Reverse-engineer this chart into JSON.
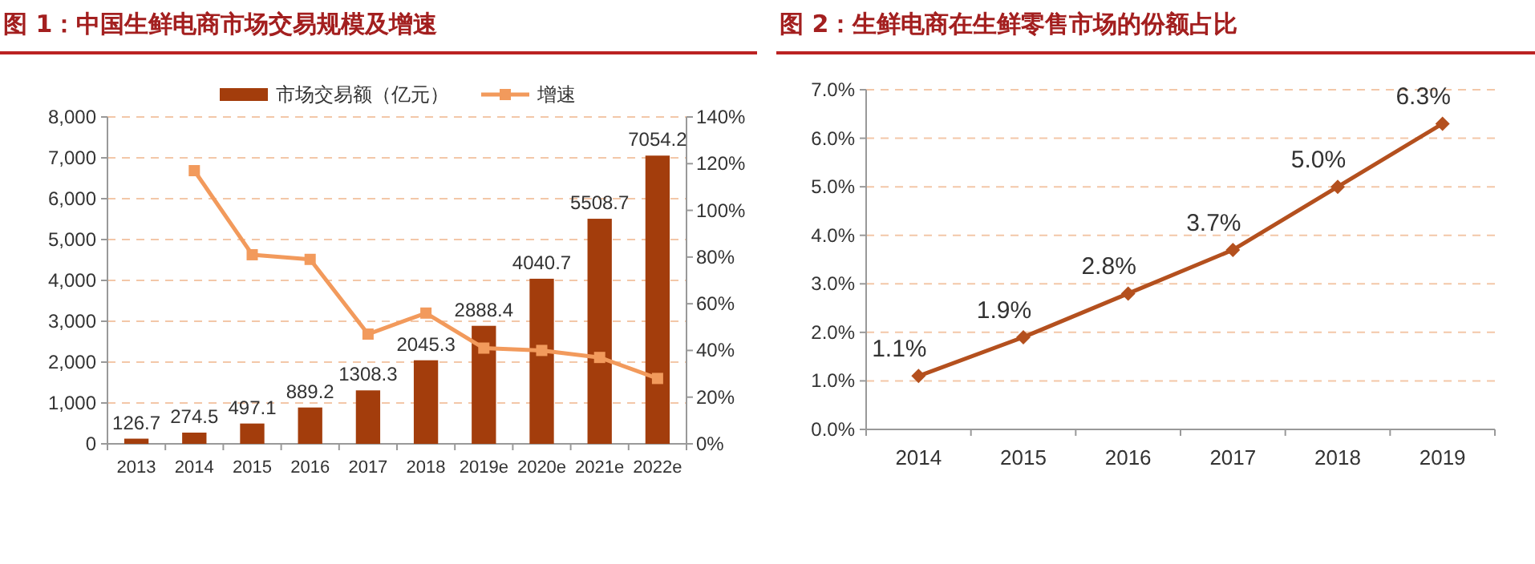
{
  "chart_data": [
    {
      "type": "bar",
      "title": "图 1：中国生鲜电商市场交易规模及增速",
      "categories": [
        "2013",
        "2014",
        "2015",
        "2016",
        "2017",
        "2018",
        "2019e",
        "2020e",
        "2021e",
        "2022e"
      ],
      "series": [
        {
          "name": "市场交易额（亿元）",
          "color": "#a33d0c",
          "values": [
            126.7,
            274.5,
            497.1,
            889.2,
            1308.3,
            2045.3,
            2888.4,
            4040.7,
            5508.7,
            7054.2
          ],
          "value_labels": [
            "126.7",
            "274.5",
            "497.1",
            "889.2",
            "1308.3",
            "2045.3",
            "2888.4",
            "4040.7",
            "5508.7",
            "7054.2"
          ]
        },
        {
          "name": "增速",
          "type": "line",
          "axis": "y2",
          "color": "#f29a5c",
          "marker": "square",
          "values": [
            null,
            117,
            81,
            79,
            47,
            56,
            41,
            40,
            37,
            28
          ]
        }
      ],
      "legend": "top",
      "grid": "y",
      "ylim": [
        0,
        8000
      ],
      "yticks": [
        {
          "value": 0,
          "label": "0"
        },
        {
          "value": 1000,
          "label": "1,000"
        },
        {
          "value": 2000,
          "label": "2,000"
        },
        {
          "value": 3000,
          "label": "3,000"
        },
        {
          "value": 4000,
          "label": "4,000"
        },
        {
          "value": 5000,
          "label": "5,000"
        },
        {
          "value": 6000,
          "label": "6,000"
        },
        {
          "value": 7000,
          "label": "7,000"
        },
        {
          "value": 8000,
          "label": "8,000"
        }
      ],
      "y2lim": [
        0,
        140
      ],
      "y2ticks": [
        {
          "value": 0,
          "label": "0%"
        },
        {
          "value": 20,
          "label": "20%"
        },
        {
          "value": 40,
          "label": "40%"
        },
        {
          "value": 60,
          "label": "60%"
        },
        {
          "value": 80,
          "label": "80%"
        },
        {
          "value": 100,
          "label": "100%"
        },
        {
          "value": 120,
          "label": "120%"
        },
        {
          "value": 140,
          "label": "140%"
        }
      ]
    },
    {
      "type": "line",
      "title": "图 2：生鲜电商在生鲜零售市场的份额占比",
      "categories": [
        "2014",
        "2015",
        "2016",
        "2017",
        "2018",
        "2019"
      ],
      "series": [
        {
          "color": "#b4501e",
          "values": [
            1.1,
            1.9,
            2.8,
            3.7,
            5.0,
            6.3
          ],
          "value_labels": [
            "1.1%",
            "1.9%",
            "2.8%",
            "3.7%",
            "5.0%",
            "6.3%"
          ]
        }
      ],
      "marker": "diamond",
      "grid": "y",
      "legend": false,
      "ylim": [
        0,
        7
      ],
      "yticks": [
        {
          "value": 0,
          "label": "0.0%"
        },
        {
          "value": 1,
          "label": "1.0%"
        },
        {
          "value": 2,
          "label": "2.0%"
        },
        {
          "value": 3,
          "label": "3.0%"
        },
        {
          "value": 4,
          "label": "4.0%"
        },
        {
          "value": 5,
          "label": "5.0%"
        },
        {
          "value": 6,
          "label": "6.0%"
        },
        {
          "value": 7,
          "label": "7.0%"
        }
      ]
    }
  ]
}
